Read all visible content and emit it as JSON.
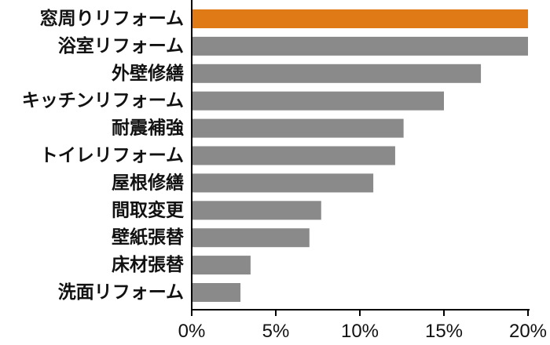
{
  "chart_data": {
    "type": "bar",
    "orientation": "horizontal",
    "categories": [
      "窓周りリフォーム",
      "浴室リフォーム",
      "外壁修繕",
      "キッチンリフォーム",
      "耐震補強",
      "トイレリフォーム",
      "屋根修繕",
      "間取変更",
      "壁紙張替",
      "床材張替",
      "洗面リフォーム"
    ],
    "values": [
      20.0,
      20.0,
      17.2,
      15.0,
      12.6,
      12.1,
      10.8,
      7.7,
      7.0,
      3.5,
      2.9
    ],
    "highlight_index": 0,
    "xlim": [
      0,
      20
    ],
    "xticks": [
      0,
      5,
      10,
      15,
      20
    ],
    "xtick_labels": [
      "0%",
      "5%",
      "10%",
      "15%",
      "20%"
    ],
    "title": "",
    "xlabel": "",
    "ylabel": "",
    "grid": false,
    "colors": {
      "highlight": "#E07A16",
      "default": "#8A8A8A",
      "axis": "#000000",
      "text": "#111111"
    }
  }
}
